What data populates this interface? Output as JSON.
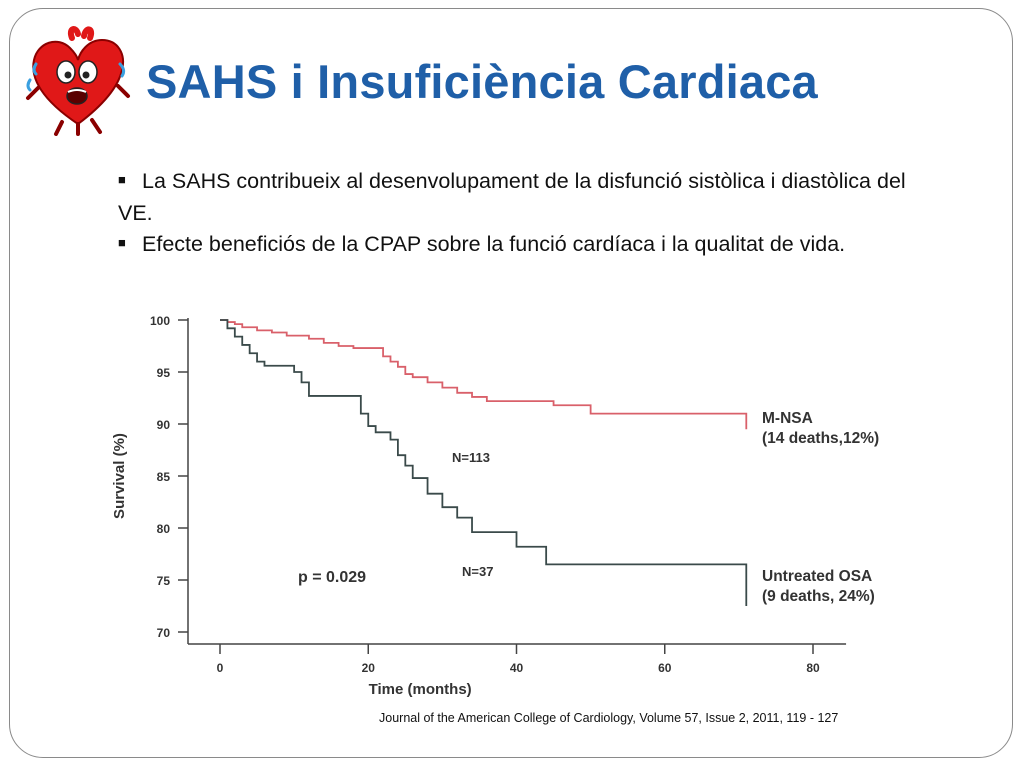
{
  "title": "SAHS i Insuficiència Cardiaca",
  "bullets": [
    {
      "marker": "■",
      "text": "La SAHS contribueix al desenvolupament de la disfunció sistòlica i diastòlica del VE."
    },
    {
      "marker": "■",
      "text": "Efecte beneficiós de la CPAP sobre la funció cardíaca i la qualitat de vida."
    }
  ],
  "citation": "Journal of the American College of Cardiology, Volume 57, Issue 2, 2011, 119 - 127",
  "logo_icon": "sweating-heart-icon",
  "colors": {
    "title": "#1f5fa8",
    "mnsa": "#d9606a",
    "osa": "#3a4a4a"
  },
  "chart_data": {
    "type": "line",
    "title": "",
    "xlabel": "Time (months)",
    "ylabel": "Survival (%)",
    "xlim": [
      0,
      85
    ],
    "ylim": [
      70,
      100
    ],
    "xticks": [
      0,
      20,
      40,
      60,
      80
    ],
    "yticks": [
      70,
      75,
      80,
      85,
      90,
      95,
      100
    ],
    "grid": false,
    "series": [
      {
        "name": "M-NSA",
        "label_lines": [
          "M-NSA",
          "(14 deaths,12%)"
        ],
        "n_label": "N=113",
        "step": true,
        "x": [
          0,
          1,
          2,
          3,
          5,
          7,
          9,
          10,
          12,
          14,
          16,
          18,
          20,
          22,
          23,
          24,
          25,
          26,
          28,
          30,
          32,
          34,
          36,
          40,
          45,
          50,
          71
        ],
        "y": [
          100,
          99.8,
          99.6,
          99.3,
          99.0,
          98.8,
          98.5,
          98.5,
          98.2,
          97.8,
          97.5,
          97.3,
          97.3,
          96.5,
          96.0,
          95.5,
          94.8,
          94.5,
          94.0,
          93.5,
          93.0,
          92.6,
          92.2,
          92.2,
          91.8,
          91.0,
          89.5
        ]
      },
      {
        "name": "Untreated OSA",
        "label_lines": [
          "Untreated OSA",
          "(9 deaths, 24%)"
        ],
        "n_label": "N=37",
        "step": true,
        "x": [
          0,
          1,
          2,
          3,
          4,
          5,
          6,
          10,
          11,
          12,
          19,
          20,
          21,
          23,
          24,
          25,
          26,
          28,
          30,
          32,
          34,
          40,
          44,
          71
        ],
        "y": [
          100,
          99.2,
          98.4,
          97.6,
          96.8,
          96.0,
          95.6,
          95.0,
          94.0,
          92.7,
          91.0,
          89.8,
          89.2,
          88.5,
          87.0,
          86.0,
          84.8,
          83.3,
          82.0,
          81.0,
          79.6,
          78.2,
          76.5,
          72.5
        ]
      }
    ],
    "annotations": [
      {
        "text": "p = 0.029"
      }
    ]
  }
}
